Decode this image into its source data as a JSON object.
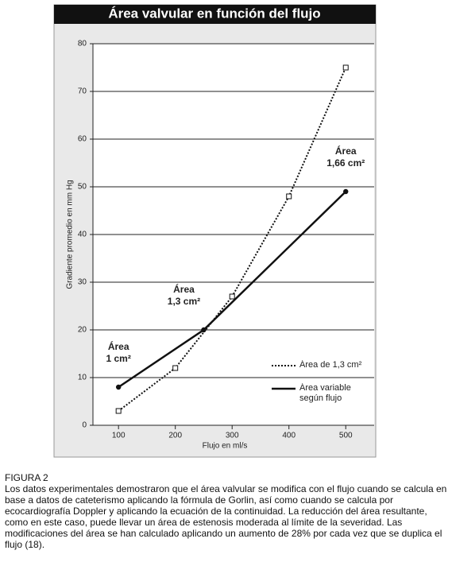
{
  "chart_data": {
    "type": "line",
    "title": "Área valvular en función del flujo",
    "x_label": "Flujo en ml/s",
    "y_label": "Gradiente promedio en mm Hg",
    "xlim": [
      55,
      550
    ],
    "xticks": [
      100,
      200,
      300,
      400,
      500
    ],
    "ylim": [
      0,
      80
    ],
    "yticks": [
      0,
      10,
      20,
      30,
      40,
      50,
      60,
      70,
      80
    ],
    "grid": true,
    "series": [
      {
        "name": "Área de 1,3 cm²",
        "color": "#111111",
        "style": "dotted",
        "marker": "square",
        "x": [
          100,
          200,
          300,
          400,
          500
        ],
        "values": [
          3,
          12,
          27,
          48,
          75
        ]
      },
      {
        "name": "Área variable según flujo",
        "color": "#111111",
        "style": "solid",
        "marker": "circle",
        "x": [
          100,
          250,
          500
        ],
        "values": [
          8,
          20,
          49
        ]
      }
    ],
    "annotations": [
      [
        "Área",
        "1 cm²"
      ],
      [
        "Área",
        "1,3 cm²"
      ],
      [
        "Área",
        "1,66 cm²"
      ]
    ]
  },
  "caption": {
    "label": "FIGURA 2",
    "text": "Los datos experimentales demostraron que el área valvular se modifica con el flujo cuando se calcula en base a datos de cateterismo aplicando la fórmula de Gorlin, así como cuando se calcula por ecocardiografía Doppler y aplicando la ecuación de la continuidad. La reducción del área resultante, como en este caso, puede llevar un área de estenosis moderada al límite de la severidad. Las modificaciones del área se han calculado aplicando un aumento de 28% por cada vez que se duplica el flujo (18)."
  }
}
